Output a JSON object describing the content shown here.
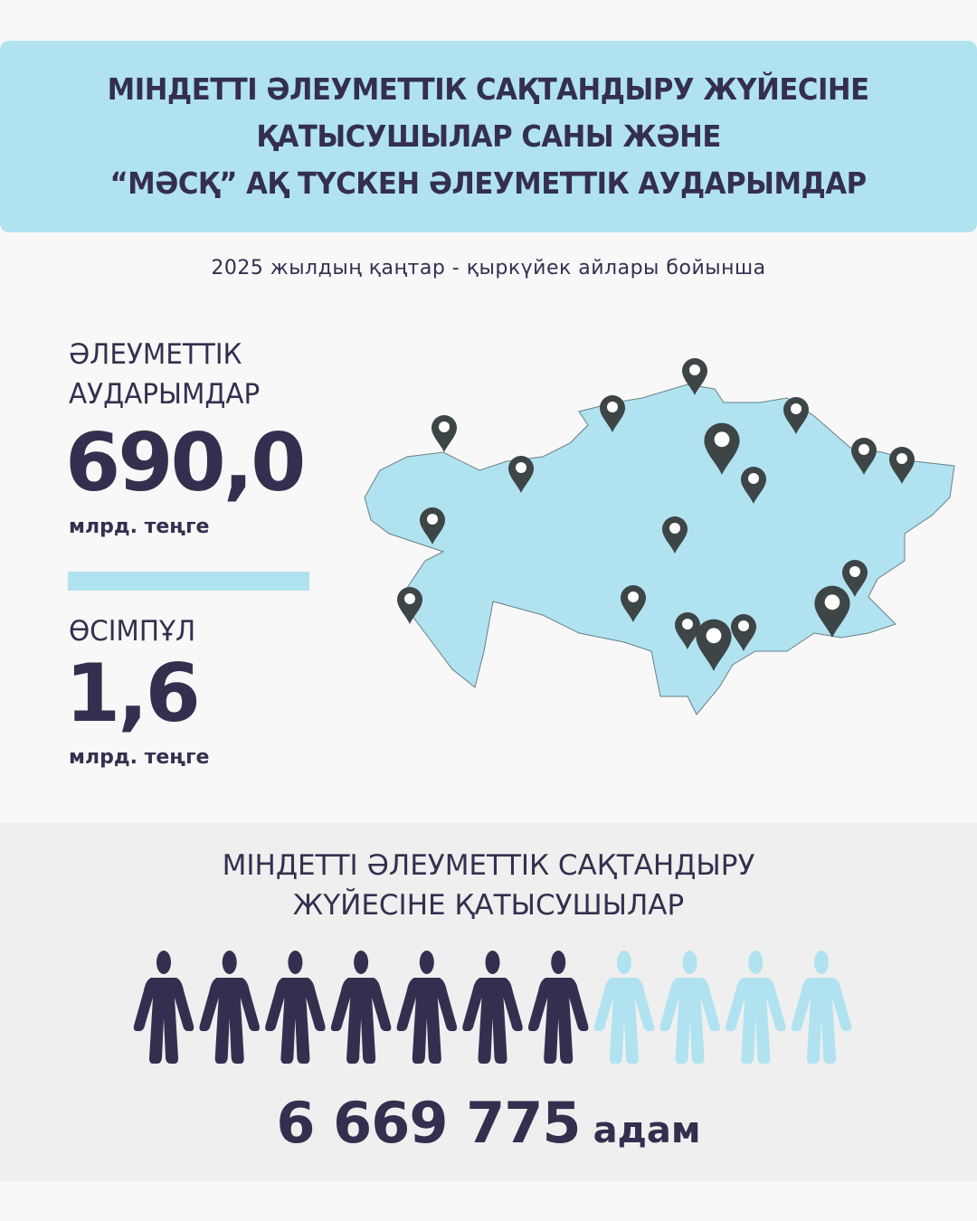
{
  "header": {
    "title_lines": [
      "МІНДЕТТІ ӘЛЕУМЕТТІК САҚТАНДЫРУ ЖҮЙЕСІНЕ",
      "ҚАТЫСУШЫЛАР САНЫ ЖӘНЕ",
      "“МӘСҚ” АҚ ТҮСКЕН ӘЛЕУМЕТТІК АУДАРЫМДАР"
    ]
  },
  "subtitle": "2025 жылдың қаңтар - қыркүйек айлары бойынша",
  "transfers": {
    "label_lines": [
      "ӘЛЕУМЕТТІК",
      "АУДАРЫМДАР"
    ],
    "value": "690,0",
    "unit": "млрд. теңге"
  },
  "growth": {
    "label": "ӨСІМПҰЛ",
    "value": "1,6",
    "unit": "млрд. теңге"
  },
  "participants": {
    "title_lines": [
      "МІНДЕТТІ ӘЛЕУМЕТТІК САҚТАНДЫРУ",
      "ЖҮЙЕСІНЕ ҚАТЫСУШЫЛАР"
    ],
    "value": "6 669 775",
    "unit": "адам",
    "icons_total": 11,
    "icons_filled": 7
  },
  "colors": {
    "dark": "#352f4f",
    "accent": "#b0e3ef",
    "pin": "#3d4547"
  }
}
